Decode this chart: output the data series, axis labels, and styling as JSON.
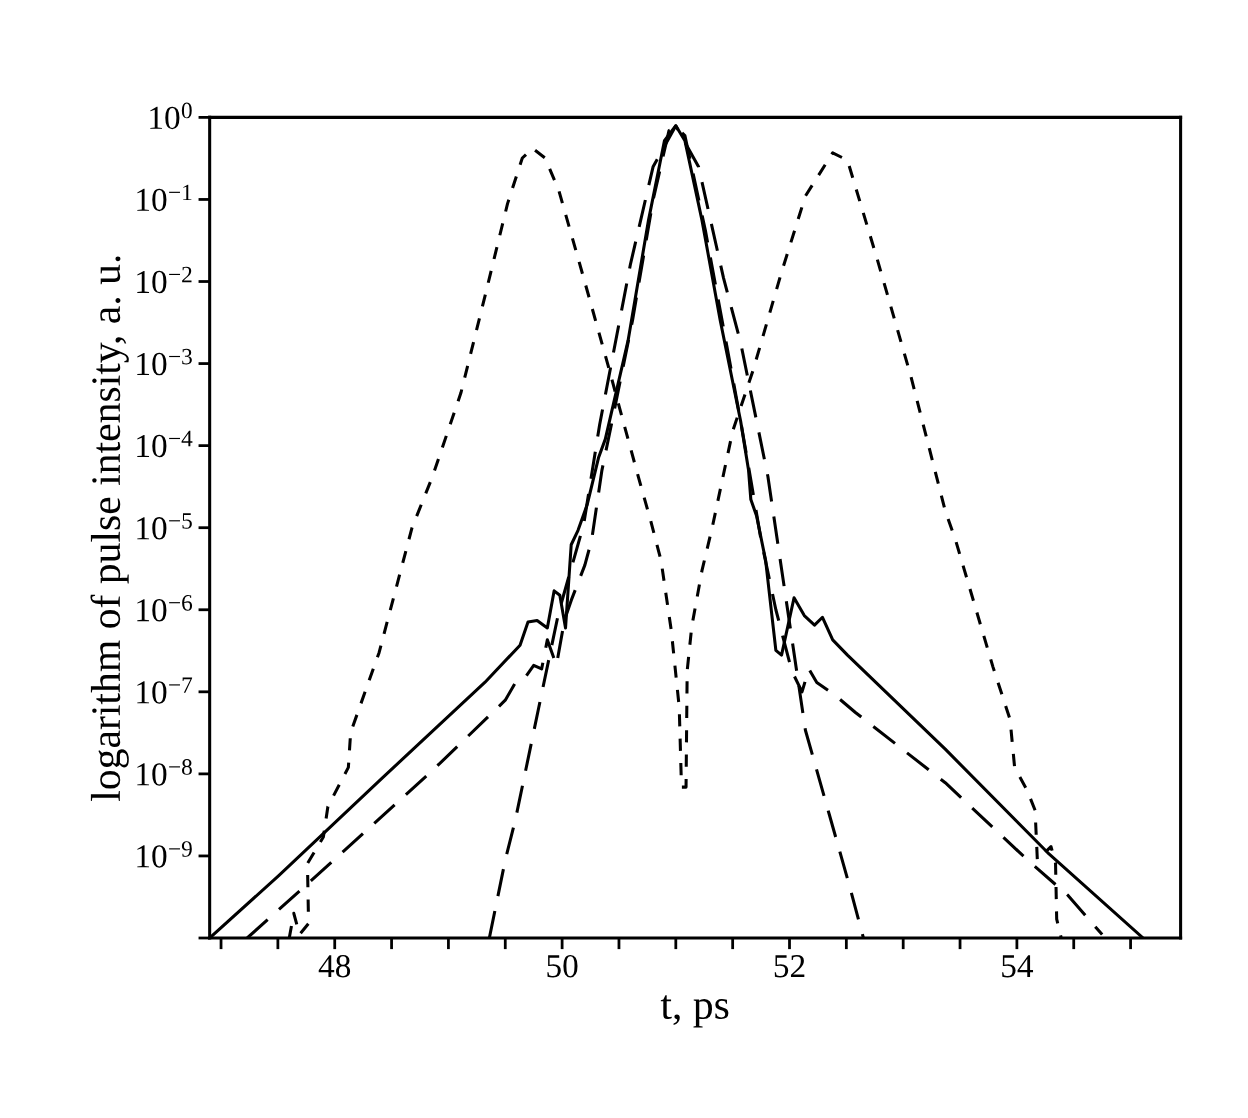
{
  "chart_data": {
    "type": "line",
    "xlabel": "t, ps",
    "ylabel": "logarithm of pulse intensity, a. u.",
    "log": "y",
    "grid": false,
    "marker": "none",
    "xlim": [
      46.9,
      55.44
    ],
    "ylim": [
      1e-10,
      1
    ],
    "xticks": [
      {
        "value": 47,
        "label": null
      },
      {
        "value": 47.5,
        "label": null
      },
      48,
      {
        "value": 48.5,
        "label": null
      },
      {
        "value": 49,
        "label": null
      },
      {
        "value": 49.5,
        "label": null
      },
      50,
      {
        "value": 50.5,
        "label": null
      },
      {
        "value": 51,
        "label": null
      },
      {
        "value": 51.5,
        "label": null
      },
      52,
      {
        "value": 52.5,
        "label": null
      },
      {
        "value": 53,
        "label": null
      },
      {
        "value": 53.5,
        "label": null
      },
      54,
      {
        "value": 54.5,
        "label": null
      },
      {
        "value": 55,
        "label": null
      }
    ],
    "yticks": [
      {
        "value": 1e-10,
        "label": null
      },
      {
        "value": 1e-09,
        "label": "10$^{−9}$"
      },
      {
        "value": 1e-08,
        "label": "10$^{−8}$"
      },
      {
        "value": 1e-07,
        "label": "10$^{−7}$"
      },
      {
        "value": 1e-06,
        "label": "10$^{−6}$"
      },
      {
        "value": 1e-05,
        "label": "10$^{−5}$"
      },
      {
        "value": 0.0001,
        "label": "10$^{−4}$"
      },
      {
        "value": 0.001,
        "label": "10$^{−3}$"
      },
      {
        "value": 0.01,
        "label": "10$^{−2}$"
      },
      {
        "value": 0.1,
        "label": "10$^{−1}$"
      },
      {
        "value": 1,
        "label": "10$^{0}$"
      }
    ],
    "series": [
      {
        "color": "#000000",
        "line_style": "solid",
        "x": [
          46.9,
          47.51,
          48.41,
          49.32,
          49.63,
          49.7,
          49.78,
          49.87,
          49.93,
          49.98,
          50.03,
          50.08,
          50.14,
          50.22,
          50.32,
          50.38,
          50.58,
          50.76,
          50.9,
          51.0,
          51.08,
          51.23,
          51.39,
          51.57,
          51.64,
          51.66,
          51.71,
          51.79,
          51.88,
          51.93,
          52.04,
          52.13,
          52.22,
          52.29,
          52.38,
          52.51,
          53.37,
          54.27,
          55.11
        ],
        "values": [
          1e-10,
          5.8e-10,
          8.7e-09,
          1.3e-07,
          3.7e-07,
          7.1e-07,
          7.4e-07,
          6e-07,
          1.7e-06,
          1.5e-06,
          6e-07,
          6.2e-06,
          9.3e-06,
          1.9e-05,
          7.1e-05,
          0.00012,
          0.0019,
          0.056,
          0.52,
          0.79,
          0.52,
          0.056,
          0.0034,
          0.0002,
          5e-05,
          2.2e-05,
          1.4e-05,
          4e-06,
          3.2e-07,
          2.8e-07,
          1.4e-06,
          8.5e-07,
          6.5e-07,
          8.1e-07,
          4.3e-07,
          2.8e-07,
          2e-08,
          1.1e-09,
          1e-10
        ]
      },
      {
        "color": "#000000",
        "line_style": "dashed",
        "x": [
          47.23,
          47.96,
          48.86,
          49.5,
          49.59,
          49.66,
          49.75,
          49.82,
          49.87,
          49.95,
          50.02,
          50.08,
          50.2,
          50.26,
          50.35,
          50.44,
          50.62,
          50.8,
          50.94,
          51.0,
          51.08,
          51.26,
          51.44,
          51.57,
          51.66,
          51.75,
          51.88,
          52.02,
          52.11,
          52.17,
          52.24,
          52.4,
          52.58,
          53.37,
          54.11,
          54.45,
          54.75
        ],
        "values": [
          1e-10,
          8.1e-10,
          1.1e-08,
          7.9e-08,
          1.3e-07,
          1.4e-07,
          2.1e-07,
          1.9e-07,
          4.3e-07,
          2.1e-07,
          7.4e-07,
          1.3e-06,
          3.5e-06,
          7.1e-06,
          5e-05,
          0.0002,
          0.0034,
          0.098,
          0.69,
          0.76,
          0.6,
          0.042,
          0.0019,
          0.0002,
          3.8e-05,
          7.1e-06,
          1e-06,
          1.8e-07,
          1e-07,
          1.9e-07,
          1.3e-07,
          9.1e-08,
          5.6e-08,
          7.8e-09,
          8.5e-10,
          3.3e-10,
          1.1e-10
        ]
      },
      {
        "color": "#000000",
        "line_style": "dashed",
        "x": [
          49.36,
          49.5,
          49.59,
          49.79,
          49.97,
          50.19,
          50.33,
          50.6,
          50.8,
          51.0,
          51.2,
          51.42,
          51.57,
          51.81,
          52.14,
          52.35,
          52.53,
          52.65
        ],
        "values": [
          1e-10,
          8.9e-10,
          2.8e-09,
          6e-08,
          9.3e-07,
          1.1e-05,
          0.00018,
          0.016,
          0.25,
          0.79,
          0.25,
          0.011,
          0.0018,
          4.2e-05,
          3.4e-08,
          3.2e-09,
          4.2e-10,
          1e-10
        ]
      },
      {
        "color": "#000000",
        "line_style": "dotted",
        "x": [
          47.6,
          47.64,
          47.69,
          47.77,
          47.76,
          47.9,
          47.94,
          48.12,
          48.14,
          48.39,
          48.68,
          48.86,
          49.11,
          49.32,
          49.52,
          49.65,
          49.74,
          49.85,
          49.97,
          50.19,
          50.4,
          50.55,
          50.67,
          50.78,
          50.87,
          50.96,
          51.03,
          51.05,
          51.09,
          51.1,
          51.14,
          51.23,
          51.32,
          51.5,
          51.68,
          51.93,
          52.14,
          52.38,
          52.51,
          52.77,
          53.07,
          53.37,
          53.46,
          53.79,
          53.94,
          53.98,
          54.09,
          54.16,
          54.18,
          54.3,
          54.34,
          54.35,
          54.39
        ],
        "values": [
          1e-10,
          2e-10,
          1.1e-10,
          1.5e-10,
          8.1e-10,
          1.7e-09,
          4e-09,
          1.2e-08,
          3.2e-08,
          3e-07,
          1e-05,
          4.2e-05,
          0.00044,
          0.0065,
          0.089,
          0.32,
          0.42,
          0.32,
          0.13,
          0.011,
          0.001,
          0.00017,
          4.2e-05,
          1.2e-05,
          4e-06,
          5.6e-07,
          6.5e-08,
          6.9e-09,
          6.9e-09,
          1.8e-07,
          6.2e-07,
          3e-06,
          1e-05,
          0.00015,
          0.00083,
          0.013,
          0.11,
          0.37,
          0.3,
          0.019,
          0.00068,
          1.6e-05,
          7.1e-06,
          2e-07,
          4.6e-08,
          1.2e-08,
          6.3e-09,
          3.6e-09,
          8.9e-10,
          1.3e-09,
          8.1e-10,
          1.7e-10,
          1e-10
        ]
      }
    ]
  }
}
